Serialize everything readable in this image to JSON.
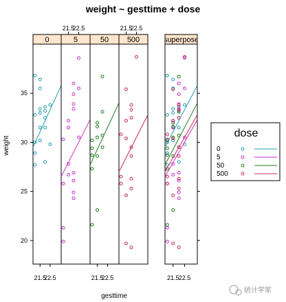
{
  "chart_data": {
    "type": "scatter",
    "title": "weight ~ gesttime + dose",
    "xlabel": "gesttime",
    "ylabel": "weight",
    "xlim": [
      20.8,
      23.6
    ],
    "ylim": [
      17.6,
      40
    ],
    "x_ticks": [
      21.5,
      22.5
    ],
    "x_tick_labels": [
      "21.5",
      "22.5"
    ],
    "y_ticks": [
      20,
      25,
      30,
      35
    ],
    "y_tick_labels": [
      "20",
      "25",
      "30",
      "35"
    ],
    "panels": [
      {
        "label": "0",
        "dose": "0"
      },
      {
        "label": "5",
        "dose": "5"
      },
      {
        "label": "50",
        "dose": "50"
      },
      {
        "label": "500",
        "dose": "500"
      },
      {
        "label": "superpose",
        "dose": "all"
      }
    ],
    "legend": {
      "title": "dose",
      "position": "right",
      "entries": [
        {
          "label": "0",
          "color": "#1f9bb0"
        },
        {
          "label": "5",
          "color": "#c82ec8"
        },
        {
          "label": "50",
          "color": "#1e7a1e"
        },
        {
          "label": "500",
          "color": "#c8285a"
        }
      ]
    },
    "series": [
      {
        "dose": "0",
        "color": "#1f9bb0",
        "points": [
          [
            21.0,
            36.8
          ],
          [
            21.0,
            32.8
          ],
          [
            21.0,
            30.0
          ],
          [
            21.0,
            28.9
          ],
          [
            21.0,
            27.7
          ],
          [
            21.5,
            36.4
          ],
          [
            21.5,
            35.5
          ],
          [
            21.5,
            33.4
          ],
          [
            21.5,
            33.0
          ],
          [
            21.5,
            31.5
          ],
          [
            21.5,
            30.2
          ],
          [
            22.0,
            33.6
          ],
          [
            22.0,
            33.2
          ],
          [
            22.0,
            32.5
          ],
          [
            22.0,
            31.5
          ],
          [
            22.0,
            28.0
          ],
          [
            22.5,
            33.8
          ],
          [
            22.5,
            29.8
          ]
        ],
        "fit": [
          [
            20.8,
            29.5
          ],
          [
            23.6,
            35.8
          ]
        ]
      },
      {
        "dose": "5",
        "color": "#c82ec8",
        "points": [
          [
            21.0,
            30.3
          ],
          [
            21.0,
            25.8
          ],
          [
            21.0,
            21.3
          ],
          [
            21.0,
            19.9
          ],
          [
            21.5,
            32.2
          ],
          [
            21.5,
            31.5
          ],
          [
            21.5,
            27.8
          ],
          [
            21.5,
            26.7
          ],
          [
            22.0,
            36.0
          ],
          [
            22.0,
            34.9
          ],
          [
            22.0,
            33.9
          ],
          [
            22.0,
            33.4
          ],
          [
            22.0,
            26.9
          ],
          [
            22.0,
            26.1
          ],
          [
            22.0,
            24.9
          ],
          [
            22.0,
            24.3
          ],
          [
            22.5,
            38.6
          ],
          [
            22.5,
            35.5
          ],
          [
            22.5,
            30.5
          ]
        ],
        "fit": [
          [
            20.8,
            26.5
          ],
          [
            23.6,
            32.3
          ]
        ]
      },
      {
        "dose": "50",
        "color": "#1e7a1e",
        "points": [
          [
            21.0,
            30.2
          ],
          [
            21.0,
            29.4
          ],
          [
            21.0,
            28.7
          ],
          [
            21.0,
            27.3
          ],
          [
            21.0,
            21.6
          ],
          [
            21.5,
            32.0
          ],
          [
            21.5,
            31.6
          ],
          [
            21.5,
            30.5
          ],
          [
            21.5,
            28.6
          ],
          [
            21.5,
            23.1
          ],
          [
            22.0,
            36.7
          ],
          [
            22.0,
            33.1
          ],
          [
            22.0,
            30.7
          ],
          [
            22.0,
            29.5
          ]
        ],
        "fit": [
          [
            20.8,
            27.7
          ],
          [
            23.6,
            34.0
          ]
        ]
      },
      {
        "dose": "500",
        "color": "#c8285a",
        "points": [
          [
            21.0,
            30.8
          ],
          [
            21.0,
            26.5
          ],
          [
            21.0,
            25.8
          ],
          [
            21.5,
            35.4
          ],
          [
            21.5,
            32.2
          ],
          [
            21.5,
            30.4
          ],
          [
            21.5,
            24.6
          ],
          [
            21.5,
            19.7
          ],
          [
            22.0,
            33.8
          ],
          [
            22.0,
            33.3
          ],
          [
            22.0,
            32.5
          ],
          [
            22.0,
            29.5
          ],
          [
            22.0,
            28.6
          ],
          [
            22.0,
            26.3
          ],
          [
            22.0,
            25.3
          ],
          [
            22.0,
            19.3
          ],
          [
            22.5,
            38.7
          ]
        ],
        "fit": [
          [
            20.8,
            27.0
          ],
          [
            23.6,
            32.8
          ]
        ]
      }
    ],
    "grid": false
  },
  "watermark": "统计学家"
}
